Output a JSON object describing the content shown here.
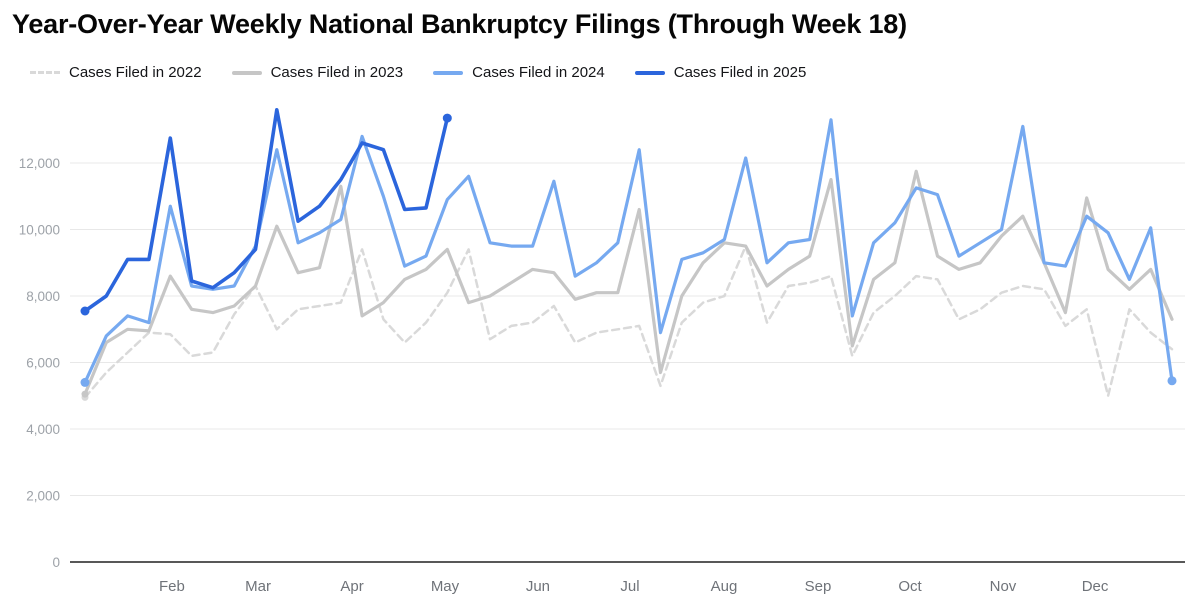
{
  "title": "Year-Over-Year Weekly National Bankruptcy Filings (Through Week 18)",
  "chart_data": {
    "type": "line",
    "title": "Year-Over-Year Weekly National Bankruptcy Filings (Through Week 18)",
    "x_unit": "week of year",
    "weeks": 52,
    "ylim": [
      0,
      14000
    ],
    "grid": "horizontal",
    "legend_position": "top-left",
    "yticks": [
      0,
      2000,
      4000,
      6000,
      8000,
      10000,
      12000
    ],
    "ytick_labels": [
      "0",
      "2,000",
      "4,000",
      "6,000",
      "8,000",
      "10,000",
      "12,000"
    ],
    "month_ticks": [
      {
        "label": "Feb",
        "week": 5.08
      },
      {
        "label": "Mar",
        "week": 9.12
      },
      {
        "label": "Apr",
        "week": 13.53
      },
      {
        "label": "May",
        "week": 17.89
      },
      {
        "label": "Jun",
        "week": 22.25
      },
      {
        "label": "Jul",
        "week": 26.57
      },
      {
        "label": "Aug",
        "week": 30.98
      },
      {
        "label": "Sep",
        "week": 35.39
      },
      {
        "label": "Oct",
        "week": 39.71
      },
      {
        "label": "Nov",
        "week": 44.07
      },
      {
        "label": "Dec",
        "week": 48.39
      }
    ],
    "series": [
      {
        "name": "Cases Filed in 2022",
        "year": "2022",
        "color": "#d9d9d9",
        "dash": true,
        "width": 2.5,
        "dots": "first",
        "dot_radius": 3.5,
        "values": [
          4950,
          5700,
          6300,
          6900,
          6850,
          6200,
          6300,
          7450,
          8300,
          7000,
          7600,
          7700,
          7800,
          9400,
          7300,
          6600,
          7200,
          8100,
          9400,
          6700,
          7100,
          7200,
          7700,
          6600,
          6900,
          7000,
          7100,
          5300,
          7200,
          7800,
          8000,
          9500,
          7200,
          8300,
          8400,
          8600,
          6200,
          7500,
          8000,
          8600,
          8500,
          7300,
          7600,
          8100,
          8300,
          8200,
          7100,
          7600,
          5000,
          7600,
          6900,
          6400
        ]
      },
      {
        "name": "Cases Filed in 2023",
        "year": "2023",
        "color": "#c6c6c6",
        "dash": false,
        "width": 3.2,
        "dots": "first",
        "dot_radius": 3.5,
        "values": [
          5050,
          6600,
          7000,
          6950,
          8600,
          7600,
          7500,
          7700,
          8300,
          10100,
          8700,
          8850,
          11300,
          7400,
          7800,
          8500,
          8800,
          9400,
          7800,
          8000,
          8400,
          8800,
          8700,
          7900,
          8100,
          8100,
          10600,
          5700,
          8000,
          9000,
          9600,
          9500,
          8300,
          8800,
          9200,
          11500,
          6500,
          8500,
          9000,
          11750,
          9200,
          8800,
          9000,
          9800,
          10400,
          9000,
          7500,
          10950,
          8800,
          8200,
          8800,
          7300
        ]
      },
      {
        "name": "Cases Filed in 2024",
        "year": "2024",
        "color": "#76a9f0",
        "dash": false,
        "width": 3.2,
        "dots": "both",
        "dot_radius": 4.5,
        "values": [
          5400,
          6800,
          7400,
          7200,
          10700,
          8300,
          8200,
          8300,
          9500,
          12400,
          9600,
          9900,
          10300,
          12800,
          11000,
          8900,
          9200,
          10900,
          11600,
          9600,
          9500,
          9500,
          11450,
          8600,
          9000,
          9600,
          12400,
          6900,
          9100,
          9300,
          9700,
          12150,
          9000,
          9600,
          9700,
          13300,
          7400,
          9600,
          10200,
          11250,
          11050,
          9200,
          9600,
          10000,
          13100,
          9000,
          8900,
          10400,
          9900,
          8500,
          10050,
          5450
        ]
      },
      {
        "name": "Cases Filed in 2025",
        "year": "2025",
        "color": "#2b65dc",
        "dash": false,
        "width": 3.6,
        "dots": "both",
        "dot_radius": 4.5,
        "values": [
          7550,
          8000,
          9100,
          9100,
          12750,
          8450,
          8250,
          8700,
          9400,
          13600,
          10250,
          10700,
          11500,
          12600,
          12400,
          10600,
          10650,
          13350
        ]
      }
    ],
    "colors": {
      "gridline": "#e8e8e8",
      "axis_line": "#212121",
      "ytick_label": "#9da2a8",
      "xtick_label": "#6f7379",
      "title": "#060606",
      "legend_label": "#141518"
    }
  }
}
